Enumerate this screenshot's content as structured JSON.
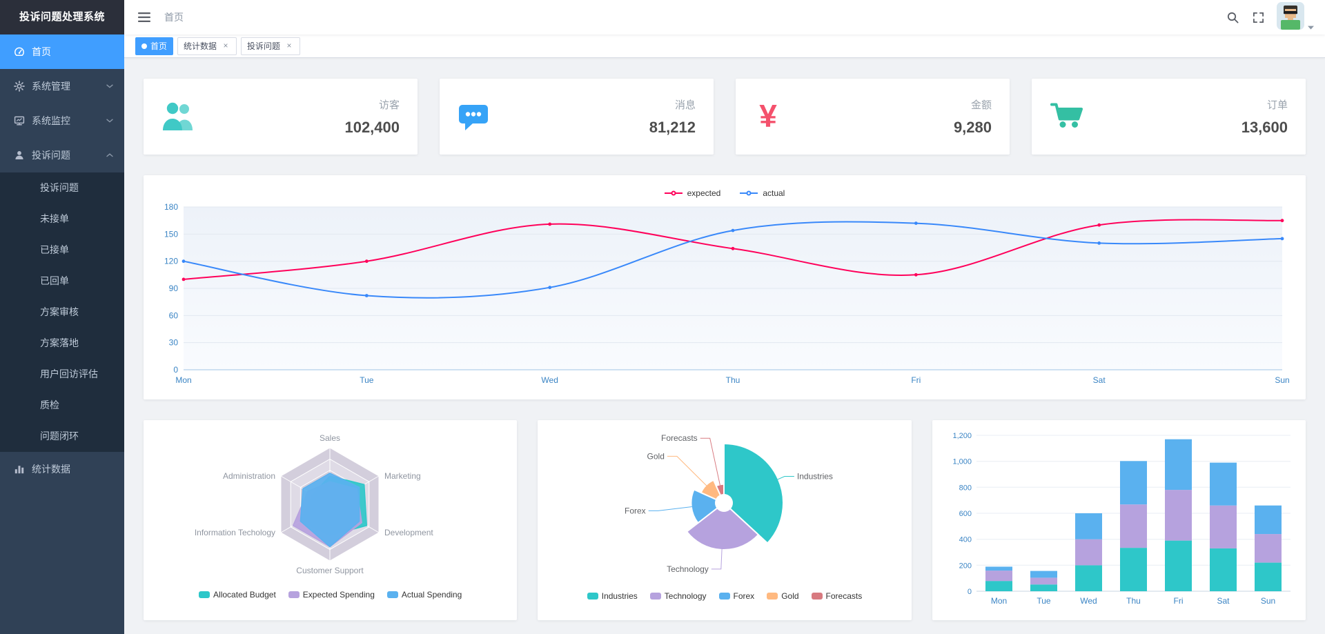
{
  "app": {
    "title": "投诉问题处理系统"
  },
  "colors": {
    "accent": "#409eff",
    "sidebar_bg": "#304156",
    "submenu_bg": "#1f2d3d",
    "axis_label": "#3a84c4",
    "palette": [
      "#2ec7c9",
      "#b6a2de",
      "#5ab1ef",
      "#ffb980",
      "#d87a80"
    ]
  },
  "header": {
    "breadcrumb": "首页",
    "icons": [
      "hamburger-icon",
      "search-icon",
      "fullscreen-icon",
      "user-avatar",
      "caret-down-icon"
    ]
  },
  "sidebar": {
    "items": [
      {
        "label": "首页",
        "icon": "dashboard-icon",
        "active": true
      },
      {
        "label": "系统管理",
        "icon": "gear-icon",
        "expandable": true
      },
      {
        "label": "系统监控",
        "icon": "monitor-icon",
        "expandable": true
      },
      {
        "label": "投诉问题",
        "icon": "complaint-icon",
        "expandable": true,
        "expanded": true,
        "children": [
          "投诉问题",
          "未接单",
          "已接单",
          "已回单",
          "方案审核",
          "方案落地",
          "用户回访评估",
          "质检",
          "问题闭环"
        ]
      },
      {
        "label": "统计数据",
        "icon": "chart-icon"
      }
    ]
  },
  "tags": [
    {
      "label": "首页",
      "active": true,
      "closable": false
    },
    {
      "label": "统计数据",
      "active": false,
      "closable": true
    },
    {
      "label": "投诉问题",
      "active": false,
      "closable": true
    }
  ],
  "stats": [
    {
      "label": "访客",
      "value": "102,400",
      "icon": "people-icon",
      "color": "#40c9c6"
    },
    {
      "label": "消息",
      "value": "81,212",
      "icon": "message-icon",
      "color": "#36a3f7"
    },
    {
      "label": "金额",
      "value": "9,280",
      "icon": "money-icon",
      "color": "#f4516c"
    },
    {
      "label": "订单",
      "value": "13,600",
      "icon": "cart-icon",
      "color": "#34bfa3"
    }
  ],
  "chart_data": [
    {
      "type": "line",
      "x": [
        "Mon",
        "Tue",
        "Wed",
        "Thu",
        "Fri",
        "Sat",
        "Sun"
      ],
      "series": [
        {
          "name": "expected",
          "color": "#ff005a",
          "values": [
            100,
            120,
            161,
            134,
            105,
            160,
            165
          ]
        },
        {
          "name": "actual",
          "color": "#3888fa",
          "values": [
            120,
            82,
            91,
            154,
            162,
            140,
            145
          ]
        }
      ],
      "ylim": [
        0,
        180
      ],
      "yticks": [
        0,
        30,
        60,
        90,
        120,
        150,
        180
      ],
      "legend_position": "top",
      "grid": true
    },
    {
      "type": "radar",
      "indicators": [
        {
          "name": "Sales"
        },
        {
          "name": "Marketing"
        },
        {
          "name": "Development"
        },
        {
          "name": "Customer Support"
        },
        {
          "name": "Information Techology"
        },
        {
          "name": "Administration"
        }
      ],
      "axis_max": 100,
      "series": [
        {
          "name": "Allocated Budget",
          "color": "#2ec7c9",
          "values": [
            50,
            70,
            75,
            55,
            60,
            35
          ]
        },
        {
          "name": "Expected Spending",
          "color": "#b6a2de",
          "values": [
            40,
            55,
            65,
            75,
            75,
            45
          ]
        },
        {
          "name": "Actual Spending",
          "color": "#5ab1ef",
          "values": [
            55,
            60,
            60,
            75,
            60,
            55
          ]
        }
      ],
      "legend_position": "bottom"
    },
    {
      "type": "pie",
      "rose": true,
      "slices": [
        {
          "name": "Industries",
          "value": 320,
          "color": "#2ec7c9"
        },
        {
          "name": "Technology",
          "value": 240,
          "color": "#b6a2de"
        },
        {
          "name": "Forex",
          "value": 149,
          "color": "#5ab1ef"
        },
        {
          "name": "Gold",
          "value": 100,
          "color": "#ffb980"
        },
        {
          "name": "Forecasts",
          "value": 59,
          "color": "#d87a80"
        }
      ],
      "legend_position": "bottom"
    },
    {
      "type": "bar",
      "stacked": true,
      "categories": [
        "Mon",
        "Tue",
        "Wed",
        "Thu",
        "Fri",
        "Sat",
        "Sun"
      ],
      "series": [
        {
          "color": "#2ec7c9",
          "values": [
            79,
            52,
            200,
            334,
            390,
            330,
            220
          ]
        },
        {
          "color": "#b6a2de",
          "values": [
            80,
            52,
            200,
            334,
            390,
            330,
            220
          ]
        },
        {
          "color": "#5ab1ef",
          "values": [
            30,
            52,
            200,
            334,
            390,
            330,
            220
          ]
        }
      ],
      "ylim": [
        0,
        1200
      ],
      "yticks": [
        0,
        200,
        400,
        600,
        800,
        1000,
        1200
      ],
      "grid": true
    }
  ]
}
